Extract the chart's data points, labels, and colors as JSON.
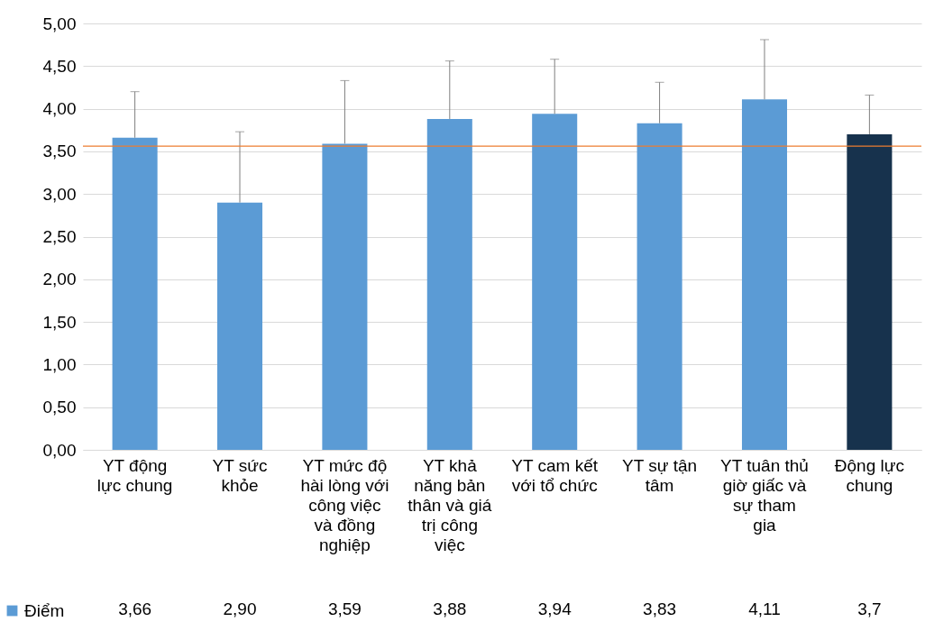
{
  "chart_data": {
    "type": "bar",
    "categories": [
      "YT động lực chung",
      "YT sức khỏe",
      "YT mức độ hài lòng với công việc và đồng nghiệp",
      "YT khả năng bản thân và giá trị công việc",
      "YT cam kết với tổ chức",
      "YT sự tận tâm",
      "YT tuân thủ giờ giấc và sự tham gia",
      "Động lực chung"
    ],
    "series": [
      {
        "name": "Điểm",
        "color": "#5b9bd5",
        "values": [
          3.66,
          2.9,
          3.59,
          3.88,
          3.94,
          3.83,
          4.11,
          3.7
        ],
        "colors": [
          "#5b9bd5",
          "#5b9bd5",
          "#5b9bd5",
          "#5b9bd5",
          "#5b9bd5",
          "#5b9bd5",
          "#5b9bd5",
          "#17324d"
        ],
        "errors": [
          [
            3.66,
            4.2
          ],
          [
            2.9,
            3.73
          ],
          [
            3.59,
            4.33
          ],
          [
            3.88,
            4.56
          ],
          [
            3.94,
            4.58
          ],
          [
            3.83,
            4.31
          ],
          [
            4.11,
            4.81
          ],
          [
            3.7,
            4.16
          ]
        ],
        "value_labels": [
          "3,66",
          "2,90",
          "3,59",
          "3,88",
          "3,94",
          "3,83",
          "4,11",
          "3,7"
        ]
      }
    ],
    "ylim": [
      0,
      5
    ],
    "yticks": [
      {
        "value": 0,
        "label": "0,00"
      },
      {
        "value": 0.5,
        "label": "0,50"
      },
      {
        "value": 1,
        "label": "1,00"
      },
      {
        "value": 1.5,
        "label": "1,50"
      },
      {
        "value": 2,
        "label": "2,00"
      },
      {
        "value": 2.5,
        "label": "2,50"
      },
      {
        "value": 3,
        "label": "3,00"
      },
      {
        "value": 3.5,
        "label": "3,50"
      },
      {
        "value": 4,
        "label": "4,00"
      },
      {
        "value": 4.5,
        "label": "4,50"
      },
      {
        "value": 5,
        "label": "5,00"
      }
    ],
    "ref_lines": [
      {
        "axis": "y",
        "value": 3.56,
        "color": "#ed7d31"
      }
    ],
    "grid": "y",
    "legend": "bottom left"
  }
}
